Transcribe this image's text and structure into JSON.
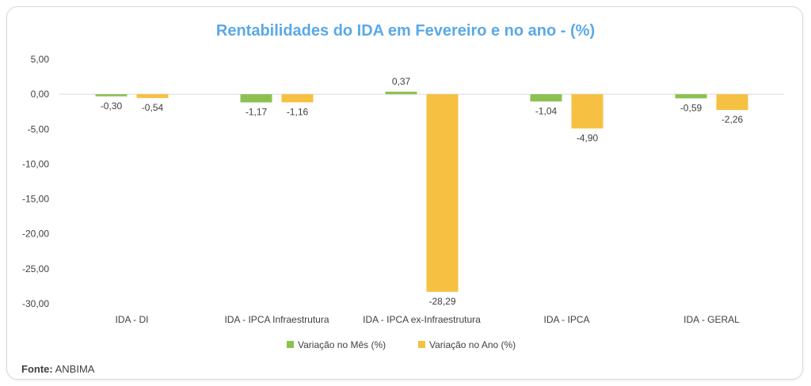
{
  "chart_data": {
    "type": "bar",
    "title": "Rentabilidades do IDA em Fevereiro e no ano - (%)",
    "categories": [
      "IDA - DI",
      "IDA - IPCA Infraestrutura",
      "IDA - IPCA ex-Infraestrutura",
      "IDA - IPCA",
      "IDA - GERAL"
    ],
    "series": [
      {
        "name": "Variação no Mês (%)",
        "color": "#8cc152",
        "values": [
          -0.3,
          -1.17,
          0.37,
          -1.04,
          -0.59
        ],
        "labels": [
          "-0,30",
          "-1,17",
          "0,37",
          "-1,04",
          "-0,59"
        ]
      },
      {
        "name": "Variação no Ano (%)",
        "color": "#f6c042",
        "values": [
          -0.54,
          -1.16,
          -28.29,
          -4.9,
          -2.26
        ],
        "labels": [
          "-0,54",
          "-1,16",
          "-28,29",
          "-4,90",
          "-2,26"
        ]
      }
    ],
    "ylim": [
      -30,
      5
    ],
    "yticks": [
      5,
      0,
      -5,
      -10,
      -15,
      -20,
      -25,
      -30
    ],
    "ytick_labels": [
      "5,00",
      "0,00",
      "-5,00",
      "-10,00",
      "-15,00",
      "-20,00",
      "-25,00",
      "-30,00"
    ],
    "legend": "bottom",
    "grid": false
  },
  "source": {
    "label": "Fonte:",
    "value": " ANBIMA"
  }
}
